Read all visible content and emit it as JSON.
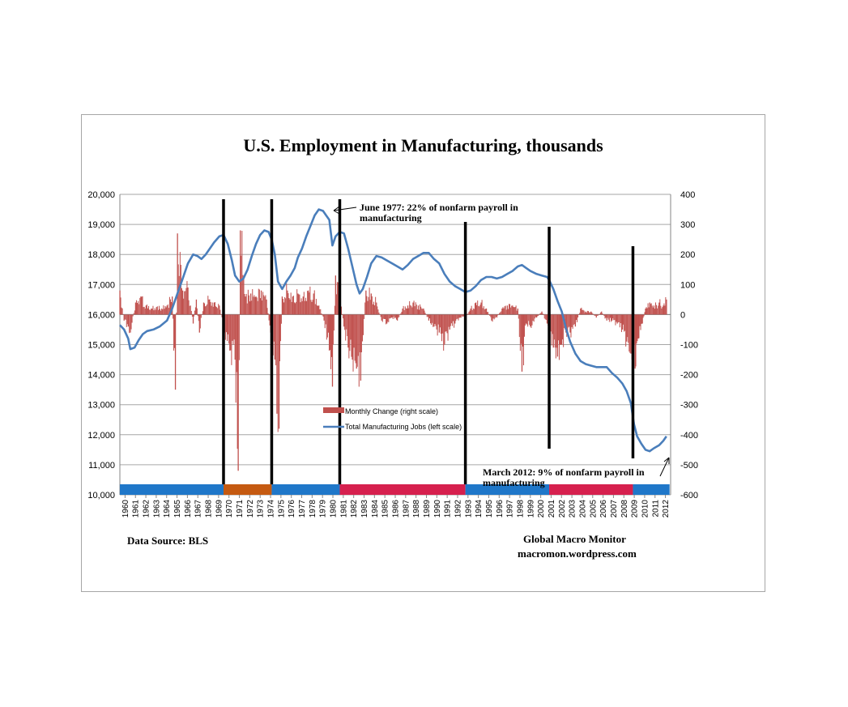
{
  "chart_data": {
    "type": "bar+line",
    "title": "U.S. Employment in Manufacturing, thousands",
    "left_axis": {
      "ticks": [
        "20,000",
        "19,000",
        "18,000",
        "17,000",
        "16,000",
        "15,000",
        "14,000",
        "13,000",
        "12,000",
        "11,000",
        "10,000"
      ],
      "ylim": [
        10000,
        20000
      ]
    },
    "right_axis": {
      "ticks": [
        "400",
        "300",
        "200",
        "100",
        "0",
        "-100",
        "-200",
        "-300",
        "-400",
        "-500",
        "-600"
      ],
      "ylim": [
        -600,
        400
      ]
    },
    "x_tick_labels": [
      "1960",
      "1961",
      "1962",
      "1963",
      "1964",
      "1965",
      "1966",
      "1967",
      "1968",
      "1969",
      "1970",
      "1971",
      "1972",
      "1973",
      "1974",
      "1975",
      "1976",
      "1977",
      "1978",
      "1979",
      "1980",
      "1981",
      "1982",
      "1983",
      "1984",
      "1985",
      "1986",
      "1987",
      "1988",
      "1989",
      "1990",
      "1991",
      "1992",
      "1993",
      "1994",
      "1995",
      "1996",
      "1997",
      "1998",
      "1999",
      "2000",
      "2001",
      "2002",
      "2003",
      "2004",
      "2005",
      "2006",
      "2007",
      "2008",
      "2009",
      "2010",
      "2011",
      "2012"
    ],
    "grid": "horizontal",
    "legend_position": "center",
    "series": [
      {
        "name": "Total Manufacturing Jobs (left scale)",
        "type": "line",
        "axis": "left",
        "color": "#4a7ebb",
        "points": [
          [
            1960.0,
            15650
          ],
          [
            1960.4,
            15500
          ],
          [
            1960.8,
            15200
          ],
          [
            1961.0,
            14850
          ],
          [
            1961.4,
            14900
          ],
          [
            1961.8,
            15150
          ],
          [
            1962.2,
            15350
          ],
          [
            1962.6,
            15450
          ],
          [
            1963.2,
            15500
          ],
          [
            1963.8,
            15600
          ],
          [
            1964.5,
            15800
          ],
          [
            1965.0,
            16200
          ],
          [
            1965.5,
            16700
          ],
          [
            1966.0,
            17200
          ],
          [
            1966.5,
            17700
          ],
          [
            1967.0,
            18000
          ],
          [
            1967.4,
            17950
          ],
          [
            1967.8,
            17850
          ],
          [
            1968.2,
            18000
          ],
          [
            1968.6,
            18200
          ],
          [
            1969.0,
            18400
          ],
          [
            1969.5,
            18600
          ],
          [
            1969.9,
            18650
          ],
          [
            1970.3,
            18350
          ],
          [
            1970.7,
            17800
          ],
          [
            1971.0,
            17300
          ],
          [
            1971.4,
            17100
          ],
          [
            1971.8,
            17200
          ],
          [
            1972.2,
            17500
          ],
          [
            1972.6,
            17950
          ],
          [
            1973.0,
            18350
          ],
          [
            1973.4,
            18650
          ],
          [
            1973.8,
            18800
          ],
          [
            1974.2,
            18750
          ],
          [
            1974.5,
            18500
          ],
          [
            1974.8,
            18000
          ],
          [
            1975.1,
            17100
          ],
          [
            1975.5,
            16850
          ],
          [
            1975.9,
            17100
          ],
          [
            1976.3,
            17300
          ],
          [
            1976.7,
            17550
          ],
          [
            1977.0,
            17900
          ],
          [
            1977.4,
            18200
          ],
          [
            1977.8,
            18600
          ],
          [
            1978.2,
            18950
          ],
          [
            1978.6,
            19300
          ],
          [
            1979.0,
            19500
          ],
          [
            1979.4,
            19450
          ],
          [
            1979.7,
            19300
          ],
          [
            1980.0,
            19150
          ],
          [
            1980.3,
            18300
          ],
          [
            1980.6,
            18600
          ],
          [
            1981.0,
            18750
          ],
          [
            1981.4,
            18700
          ],
          [
            1981.8,
            18200
          ],
          [
            1982.2,
            17600
          ],
          [
            1982.6,
            17000
          ],
          [
            1982.9,
            16700
          ],
          [
            1983.2,
            16850
          ],
          [
            1983.6,
            17250
          ],
          [
            1984.0,
            17700
          ],
          [
            1984.5,
            17950
          ],
          [
            1985.0,
            17900
          ],
          [
            1985.5,
            17800
          ],
          [
            1986.0,
            17700
          ],
          [
            1986.5,
            17600
          ],
          [
            1987.0,
            17500
          ],
          [
            1987.5,
            17650
          ],
          [
            1988.0,
            17850
          ],
          [
            1988.5,
            17950
          ],
          [
            1989.0,
            18050
          ],
          [
            1989.5,
            18050
          ],
          [
            1990.0,
            17850
          ],
          [
            1990.5,
            17700
          ],
          [
            1991.0,
            17350
          ],
          [
            1991.5,
            17100
          ],
          [
            1992.0,
            16950
          ],
          [
            1992.5,
            16850
          ],
          [
            1993.0,
            16750
          ],
          [
            1993.5,
            16800
          ],
          [
            1994.0,
            16950
          ],
          [
            1994.5,
            17150
          ],
          [
            1995.0,
            17250
          ],
          [
            1995.5,
            17250
          ],
          [
            1996.0,
            17200
          ],
          [
            1996.5,
            17250
          ],
          [
            1997.0,
            17350
          ],
          [
            1997.5,
            17450
          ],
          [
            1998.0,
            17600
          ],
          [
            1998.4,
            17650
          ],
          [
            1998.8,
            17550
          ],
          [
            1999.2,
            17450
          ],
          [
            1999.8,
            17350
          ],
          [
            2000.3,
            17300
          ],
          [
            2000.8,
            17250
          ],
          [
            2001.0,
            17150
          ],
          [
            2001.4,
            16850
          ],
          [
            2001.8,
            16450
          ],
          [
            2002.2,
            16100
          ],
          [
            2002.6,
            15550
          ],
          [
            2003.0,
            15100
          ],
          [
            2003.5,
            14700
          ],
          [
            2004.0,
            14450
          ],
          [
            2004.5,
            14350
          ],
          [
            2005.0,
            14300
          ],
          [
            2005.5,
            14250
          ],
          [
            2006.0,
            14250
          ],
          [
            2006.5,
            14250
          ],
          [
            2007.0,
            14050
          ],
          [
            2007.5,
            13900
          ],
          [
            2008.0,
            13700
          ],
          [
            2008.4,
            13450
          ],
          [
            2008.8,
            13050
          ],
          [
            2009.1,
            12350
          ],
          [
            2009.4,
            11950
          ],
          [
            2009.8,
            11700
          ],
          [
            2010.2,
            11500
          ],
          [
            2010.6,
            11450
          ],
          [
            2011.0,
            11550
          ],
          [
            2011.5,
            11650
          ],
          [
            2011.9,
            11800
          ],
          [
            2012.2,
            11950
          ]
        ]
      },
      {
        "name": "Monthly Change (right scale)",
        "type": "bar",
        "axis": "right",
        "color": "#c0504d",
        "points": [
          [
            1960.0,
            80
          ],
          [
            1960.4,
            -20
          ],
          [
            1960.8,
            -40
          ],
          [
            1961.0,
            -60
          ],
          [
            1961.5,
            40
          ],
          [
            1962.0,
            60
          ],
          [
            1962.5,
            30
          ],
          [
            1963.0,
            20
          ],
          [
            1963.5,
            25
          ],
          [
            1964.0,
            20
          ],
          [
            1964.5,
            30
          ],
          [
            1965.0,
            60
          ],
          [
            1965.3,
            -250
          ],
          [
            1965.5,
            270
          ],
          [
            1966.0,
            80
          ],
          [
            1966.5,
            90
          ],
          [
            1967.0,
            -30
          ],
          [
            1967.3,
            50
          ],
          [
            1967.6,
            -60
          ],
          [
            1968.0,
            40
          ],
          [
            1968.5,
            50
          ],
          [
            1969.0,
            40
          ],
          [
            1969.5,
            30
          ],
          [
            1970.0,
            -60
          ],
          [
            1970.5,
            -120
          ],
          [
            1971.0,
            -150
          ],
          [
            1971.3,
            -520
          ],
          [
            1971.5,
            280
          ],
          [
            1972.0,
            60
          ],
          [
            1972.5,
            70
          ],
          [
            1973.0,
            60
          ],
          [
            1973.5,
            80
          ],
          [
            1974.0,
            50
          ],
          [
            1974.4,
            -60
          ],
          [
            1974.8,
            -150
          ],
          [
            1975.0,
            -330
          ],
          [
            1975.2,
            -380
          ],
          [
            1975.5,
            60
          ],
          [
            1976.0,
            80
          ],
          [
            1976.5,
            60
          ],
          [
            1977.0,
            70
          ],
          [
            1977.5,
            60
          ],
          [
            1978.0,
            80
          ],
          [
            1978.5,
            70
          ],
          [
            1979.0,
            30
          ],
          [
            1979.5,
            -20
          ],
          [
            1980.0,
            -120
          ],
          [
            1980.3,
            -240
          ],
          [
            1980.6,
            130
          ],
          [
            1981.0,
            60
          ],
          [
            1981.4,
            -40
          ],
          [
            1981.8,
            -110
          ],
          [
            1982.2,
            -150
          ],
          [
            1982.6,
            -180
          ],
          [
            1983.0,
            -220
          ],
          [
            1983.5,
            80
          ],
          [
            1984.0,
            70
          ],
          [
            1984.5,
            40
          ],
          [
            1985.0,
            -20
          ],
          [
            1985.5,
            -30
          ],
          [
            1986.0,
            -10
          ],
          [
            1986.5,
            -20
          ],
          [
            1987.0,
            20
          ],
          [
            1987.5,
            30
          ],
          [
            1988.0,
            40
          ],
          [
            1988.5,
            30
          ],
          [
            1989.0,
            20
          ],
          [
            1989.5,
            -20
          ],
          [
            1990.0,
            -40
          ],
          [
            1990.5,
            -60
          ],
          [
            1991.0,
            -100
          ],
          [
            1991.5,
            -50
          ],
          [
            1992.0,
            -30
          ],
          [
            1992.5,
            -10
          ],
          [
            1993.0,
            -10
          ],
          [
            1993.5,
            20
          ],
          [
            1994.0,
            40
          ],
          [
            1994.5,
            40
          ],
          [
            1995.0,
            20
          ],
          [
            1995.5,
            -20
          ],
          [
            1996.0,
            -10
          ],
          [
            1996.5,
            20
          ],
          [
            1997.0,
            30
          ],
          [
            1997.5,
            30
          ],
          [
            1998.0,
            20
          ],
          [
            1998.4,
            -190
          ],
          [
            1998.8,
            -30
          ],
          [
            1999.2,
            -40
          ],
          [
            1999.8,
            -10
          ],
          [
            2000.3,
            10
          ],
          [
            2000.8,
            -30
          ],
          [
            2001.0,
            -70
          ],
          [
            2001.4,
            -110
          ],
          [
            2001.8,
            -140
          ],
          [
            2002.2,
            -100
          ],
          [
            2002.6,
            -60
          ],
          [
            2003.0,
            -60
          ],
          [
            2003.5,
            -40
          ],
          [
            2004.0,
            20
          ],
          [
            2004.5,
            10
          ],
          [
            2005.0,
            10
          ],
          [
            2005.5,
            -10
          ],
          [
            2006.0,
            10
          ],
          [
            2006.5,
            -20
          ],
          [
            2007.0,
            -20
          ],
          [
            2007.5,
            -30
          ],
          [
            2008.0,
            -50
          ],
          [
            2008.4,
            -90
          ],
          [
            2008.8,
            -130
          ],
          [
            2009.0,
            -170
          ],
          [
            2009.2,
            -180
          ],
          [
            2009.5,
            -80
          ],
          [
            2009.9,
            -30
          ],
          [
            2010.2,
            20
          ],
          [
            2010.6,
            40
          ],
          [
            2011.0,
            30
          ],
          [
            2011.5,
            40
          ],
          [
            2011.9,
            30
          ],
          [
            2012.2,
            50
          ]
        ]
      }
    ],
    "recession_markers": [
      1969.9,
      1974.5,
      1981.0,
      1993.0,
      2001.0,
      2009.0
    ],
    "term_bands": [
      {
        "start": 1960.0,
        "end": 1969.9,
        "color": "#1f77c9"
      },
      {
        "start": 1969.9,
        "end": 1974.5,
        "color": "#c55a11"
      },
      {
        "start": 1974.5,
        "end": 1981.0,
        "color": "#1f77c9"
      },
      {
        "start": 1981.0,
        "end": 1993.0,
        "color": "#d6204e"
      },
      {
        "start": 1993.0,
        "end": 2001.0,
        "color": "#1f77c9"
      },
      {
        "start": 2001.0,
        "end": 2009.0,
        "color": "#d6204e"
      },
      {
        "start": 2009.0,
        "end": 2012.5,
        "color": "#1f77c9"
      }
    ],
    "annotations": {
      "june_1977_line1": "June 1977:  22% of nonfarm payroll in",
      "june_1977_line2": "manufacturing",
      "march_2012_line1": "March 2012:  9% of nonfarm payroll in",
      "march_2012_line2": "manufacturing"
    }
  },
  "footer": {
    "source": "Data Source:   BLS",
    "brand_line1": "Global Macro Monitor",
    "brand_line2": "macromon.wordpress.com"
  }
}
